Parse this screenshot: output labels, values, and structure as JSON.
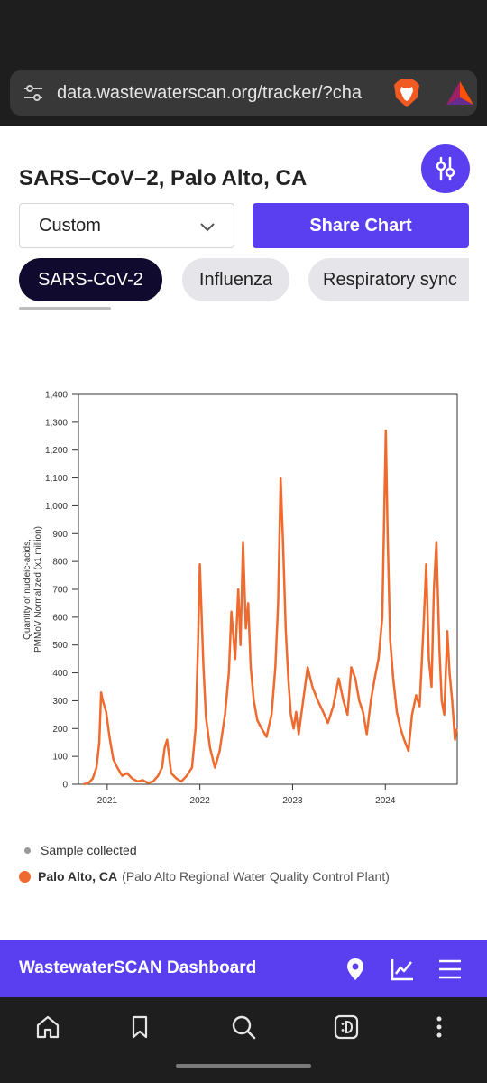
{
  "browser": {
    "url": "data.wastewaterscan.org/tracker/?cha"
  },
  "page": {
    "title": "SARS–CoV–2, Palo Alto, CA",
    "range_select": "Custom",
    "share_label": "Share Chart",
    "tabs": [
      {
        "label": "SARS-CoV-2",
        "active": true
      },
      {
        "label": "Influenza",
        "active": false
      },
      {
        "label": "Respiratory sync",
        "active": false
      }
    ]
  },
  "chart_data": {
    "type": "line",
    "ylabel_line1": "Quantity of nucleic-acids,",
    "ylabel_line2": "PMMoV Normalized (x1 million)",
    "ylim": [
      0,
      1400
    ],
    "yticks": [
      "0",
      "100",
      "200",
      "300",
      "400",
      "500",
      "600",
      "700",
      "800",
      "900",
      "1,000",
      "1,100",
      "1,200",
      "1,300",
      "1,400"
    ],
    "xticks": [
      "2021",
      "2022",
      "2023",
      "2024"
    ],
    "xlim": [
      "2020-09-10",
      "2024-10-10"
    ],
    "series": [
      {
        "name": "Palo Alto, CA",
        "color": "#ee6a2e",
        "x": [
          "2020-10-01",
          "2020-10-20",
          "2020-11-05",
          "2020-11-20",
          "2020-12-01",
          "2020-12-08",
          "2020-12-15",
          "2020-12-28",
          "2021-01-10",
          "2021-01-25",
          "2021-02-10",
          "2021-03-01",
          "2021-03-20",
          "2021-04-10",
          "2021-05-01",
          "2021-05-20",
          "2021-06-10",
          "2021-07-01",
          "2021-07-20",
          "2021-08-05",
          "2021-08-15",
          "2021-08-25",
          "2021-09-10",
          "2021-10-01",
          "2021-10-20",
          "2021-11-10",
          "2021-12-01",
          "2021-12-15",
          "2021-12-25",
          "2022-01-01",
          "2022-01-06",
          "2022-01-15",
          "2022-01-25",
          "2022-02-10",
          "2022-03-01",
          "2022-03-20",
          "2022-04-10",
          "2022-04-25",
          "2022-05-05",
          "2022-05-20",
          "2022-06-01",
          "2022-06-10",
          "2022-06-20",
          "2022-07-01",
          "2022-07-10",
          "2022-07-20",
          "2022-08-01",
          "2022-08-15",
          "2022-09-01",
          "2022-09-20",
          "2022-10-10",
          "2022-10-25",
          "2022-11-05",
          "2022-11-15",
          "2022-11-25",
          "2022-12-05",
          "2022-12-15",
          "2022-12-25",
          "2023-01-05",
          "2023-01-15",
          "2023-01-25",
          "2023-02-10",
          "2023-03-01",
          "2023-03-20",
          "2023-04-10",
          "2023-05-01",
          "2023-05-20",
          "2023-06-10",
          "2023-07-01",
          "2023-07-20",
          "2023-08-05",
          "2023-08-20",
          "2023-09-05",
          "2023-09-20",
          "2023-10-05",
          "2023-10-20",
          "2023-11-05",
          "2023-11-20",
          "2023-12-05",
          "2023-12-20",
          "2023-12-28",
          "2024-01-03",
          "2024-01-10",
          "2024-01-20",
          "2024-02-01",
          "2024-02-15",
          "2024-03-01",
          "2024-03-15",
          "2024-04-01",
          "2024-04-15",
          "2024-05-01",
          "2024-05-15",
          "2024-06-01",
          "2024-06-10",
          "2024-06-20",
          "2024-07-01",
          "2024-07-10",
          "2024-07-20",
          "2024-08-01",
          "2024-08-10",
          "2024-08-20",
          "2024-09-01",
          "2024-09-10",
          "2024-09-20",
          "2024-10-01",
          "2024-10-08"
        ],
        "values": [
          0,
          5,
          20,
          60,
          150,
          330,
          300,
          260,
          170,
          90,
          60,
          30,
          40,
          20,
          10,
          15,
          5,
          10,
          30,
          60,
          130,
          160,
          40,
          20,
          10,
          30,
          60,
          200,
          520,
          790,
          650,
          420,
          240,
          130,
          60,
          120,
          250,
          400,
          620,
          450,
          700,
          500,
          870,
          560,
          650,
          420,
          300,
          230,
          200,
          170,
          250,
          420,
          650,
          1100,
          850,
          550,
          380,
          250,
          200,
          260,
          180,
          290,
          420,
          350,
          300,
          260,
          220,
          280,
          380,
          300,
          250,
          420,
          380,
          300,
          260,
          180,
          300,
          380,
          450,
          600,
          1000,
          1270,
          900,
          520,
          380,
          260,
          200,
          160,
          120,
          250,
          320,
          280,
          600,
          790,
          450,
          350,
          700,
          870,
          480,
          300,
          250,
          550,
          400,
          300,
          160,
          200
        ]
      }
    ]
  },
  "legend": {
    "sample_label": "Sample collected",
    "site_name": "Palo Alto, CA",
    "site_plant": "(Palo Alto Regional Water Quality Control Plant)"
  },
  "footer": {
    "title": "WastewaterSCAN Dashboard"
  }
}
